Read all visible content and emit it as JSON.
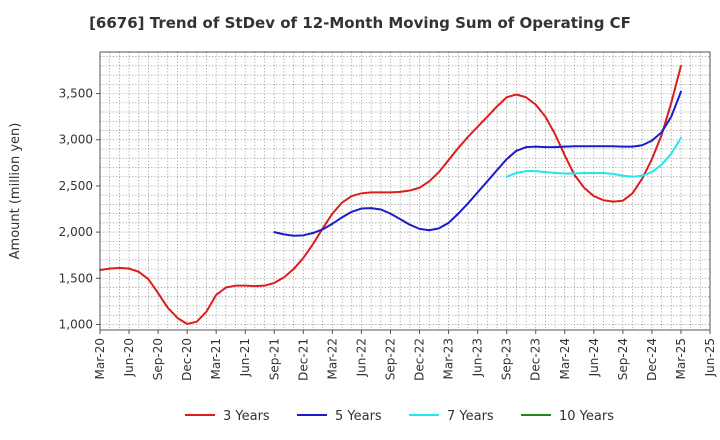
{
  "chart_data": {
    "type": "line",
    "title": "[6676]  Trend of StDev of 12-Month Moving Sum of Operating CF",
    "xlabel": "",
    "ylabel": "Amount (million yen)",
    "ylim": [
      940,
      3950
    ],
    "yticks": [
      1000,
      1500,
      2000,
      2500,
      3000,
      3500
    ],
    "ytick_labels": [
      "1,000",
      "1,500",
      "2,000",
      "2,500",
      "3,000",
      "3,500"
    ],
    "x_range": [
      "2020-03",
      "2025-06"
    ],
    "xticks": [
      "2020-03",
      "2020-06",
      "2020-09",
      "2020-12",
      "2021-03",
      "2021-06",
      "2021-09",
      "2021-12",
      "2022-03",
      "2022-06",
      "2022-09",
      "2022-12",
      "2023-03",
      "2023-06",
      "2023-09",
      "2023-12",
      "2024-03",
      "2024-06",
      "2024-09",
      "2024-12",
      "2025-03",
      "2025-06"
    ],
    "xtick_labels": [
      "Mar-20",
      "Jun-20",
      "Sep-20",
      "Dec-20",
      "Mar-21",
      "Jun-21",
      "Sep-21",
      "Dec-21",
      "Mar-22",
      "Jun-22",
      "Sep-22",
      "Dec-22",
      "Mar-23",
      "Jun-23",
      "Sep-23",
      "Dec-23",
      "Mar-24",
      "Jun-24",
      "Sep-24",
      "Dec-24",
      "Mar-25",
      "Jun-25"
    ],
    "grid": true,
    "legend_position": "bottom",
    "series": [
      {
        "name": "3 Years",
        "color": "#dd1c1c",
        "x": [
          "2020-03",
          "2020-04",
          "2020-05",
          "2020-06",
          "2020-07",
          "2020-08",
          "2020-09",
          "2020-10",
          "2020-11",
          "2020-12",
          "2021-01",
          "2021-02",
          "2021-03",
          "2021-04",
          "2021-05",
          "2021-06",
          "2021-07",
          "2021-08",
          "2021-09",
          "2021-10",
          "2021-11",
          "2021-12",
          "2022-01",
          "2022-02",
          "2022-03",
          "2022-04",
          "2022-05",
          "2022-06",
          "2022-07",
          "2022-08",
          "2022-09",
          "2022-10",
          "2022-11",
          "2022-12",
          "2023-01",
          "2023-02",
          "2023-03",
          "2023-04",
          "2023-05",
          "2023-06",
          "2023-07",
          "2023-08",
          "2023-09",
          "2023-10",
          "2023-11",
          "2023-12",
          "2024-01",
          "2024-02",
          "2024-03",
          "2024-04",
          "2024-05",
          "2024-06",
          "2024-07",
          "2024-08",
          "2024-09",
          "2024-10",
          "2024-11",
          "2024-12",
          "2025-01",
          "2025-02",
          "2025-03"
        ],
        "values": [
          1590,
          1605,
          1612,
          1605,
          1570,
          1490,
          1340,
          1180,
          1070,
          1005,
          1030,
          1140,
          1320,
          1400,
          1420,
          1420,
          1415,
          1420,
          1450,
          1510,
          1600,
          1720,
          1870,
          2040,
          2200,
          2320,
          2390,
          2420,
          2430,
          2430,
          2430,
          2435,
          2450,
          2480,
          2550,
          2650,
          2780,
          2910,
          3030,
          3140,
          3250,
          3360,
          3460,
          3490,
          3460,
          3380,
          3250,
          3060,
          2830,
          2620,
          2480,
          2390,
          2345,
          2330,
          2340,
          2420,
          2580,
          2790,
          3050,
          3400,
          3800
        ]
      },
      {
        "name": "5 Years",
        "color": "#1c1ccc",
        "x": [
          "2021-09",
          "2021-10",
          "2021-11",
          "2021-12",
          "2022-01",
          "2022-02",
          "2022-03",
          "2022-04",
          "2022-05",
          "2022-06",
          "2022-07",
          "2022-08",
          "2022-09",
          "2022-10",
          "2022-11",
          "2022-12",
          "2023-01",
          "2023-02",
          "2023-03",
          "2023-04",
          "2023-05",
          "2023-06",
          "2023-07",
          "2023-08",
          "2023-09",
          "2023-10",
          "2023-11",
          "2023-12",
          "2024-01",
          "2024-02",
          "2024-03",
          "2024-04",
          "2024-05",
          "2024-06",
          "2024-07",
          "2024-08",
          "2024-09",
          "2024-10",
          "2024-11",
          "2024-12",
          "2025-01",
          "2025-02",
          "2025-03"
        ],
        "values": [
          2000,
          1975,
          1960,
          1965,
          1990,
          2030,
          2090,
          2160,
          2220,
          2255,
          2260,
          2245,
          2200,
          2140,
          2080,
          2035,
          2020,
          2040,
          2100,
          2200,
          2310,
          2430,
          2550,
          2670,
          2790,
          2880,
          2920,
          2925,
          2920,
          2920,
          2925,
          2930,
          2930,
          2930,
          2930,
          2930,
          2925,
          2925,
          2940,
          2990,
          3080,
          3250,
          3520
        ]
      },
      {
        "name": "7 Years",
        "color": "#22e6ee",
        "x": [
          "2023-09",
          "2023-10",
          "2023-11",
          "2023-12",
          "2024-01",
          "2024-02",
          "2024-03",
          "2024-04",
          "2024-05",
          "2024-06",
          "2024-07",
          "2024-08",
          "2024-09",
          "2024-10",
          "2024-11",
          "2024-12",
          "2025-01",
          "2025-02",
          "2025-03"
        ],
        "values": [
          2600,
          2640,
          2660,
          2660,
          2650,
          2640,
          2635,
          2635,
          2640,
          2640,
          2640,
          2630,
          2610,
          2600,
          2610,
          2650,
          2730,
          2850,
          3020
        ]
      },
      {
        "name": "10 Years",
        "color": "#1e8a1e",
        "x": [],
        "values": []
      }
    ]
  }
}
